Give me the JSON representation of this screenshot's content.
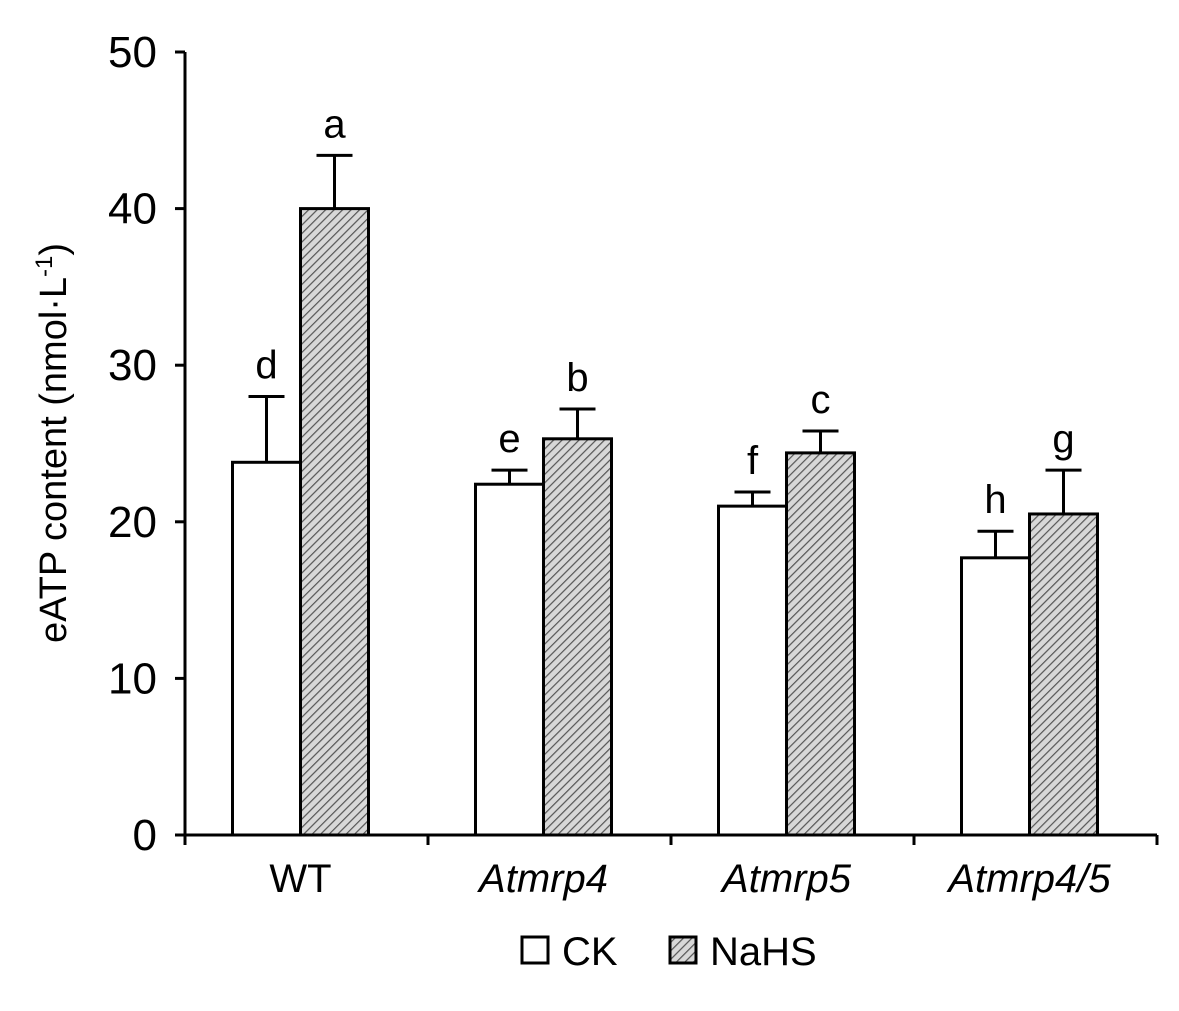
{
  "chart_data": {
    "type": "bar",
    "ylabel_main": "eATP content (nmol·L",
    "ylabel_sup": "-1",
    "ylabel_close": ")",
    "ylim": [
      0,
      50
    ],
    "yticks": [
      "0",
      "10",
      "20",
      "30",
      "40",
      "50"
    ],
    "categories": [
      "WT",
      "Atmrp4",
      "Atmrp5",
      "Atmrp4/5"
    ],
    "category_italic": [
      false,
      true,
      true,
      true
    ],
    "series": [
      {
        "name": "CK",
        "fill": "white",
        "values": [
          23.8,
          22.4,
          21.0,
          17.7
        ],
        "errors": [
          4.2,
          0.9,
          0.9,
          1.7
        ],
        "sig": [
          "d",
          "e",
          "f",
          "h"
        ]
      },
      {
        "name": "NaHS",
        "fill": "hatched",
        "values": [
          40.0,
          25.3,
          24.4,
          20.5
        ],
        "errors": [
          3.4,
          1.9,
          1.4,
          2.8
        ],
        "sig": [
          "a",
          "b",
          "c",
          "g"
        ]
      }
    ],
    "legend": [
      "CK",
      "NaHS"
    ],
    "legend_position": "bottom-center"
  }
}
